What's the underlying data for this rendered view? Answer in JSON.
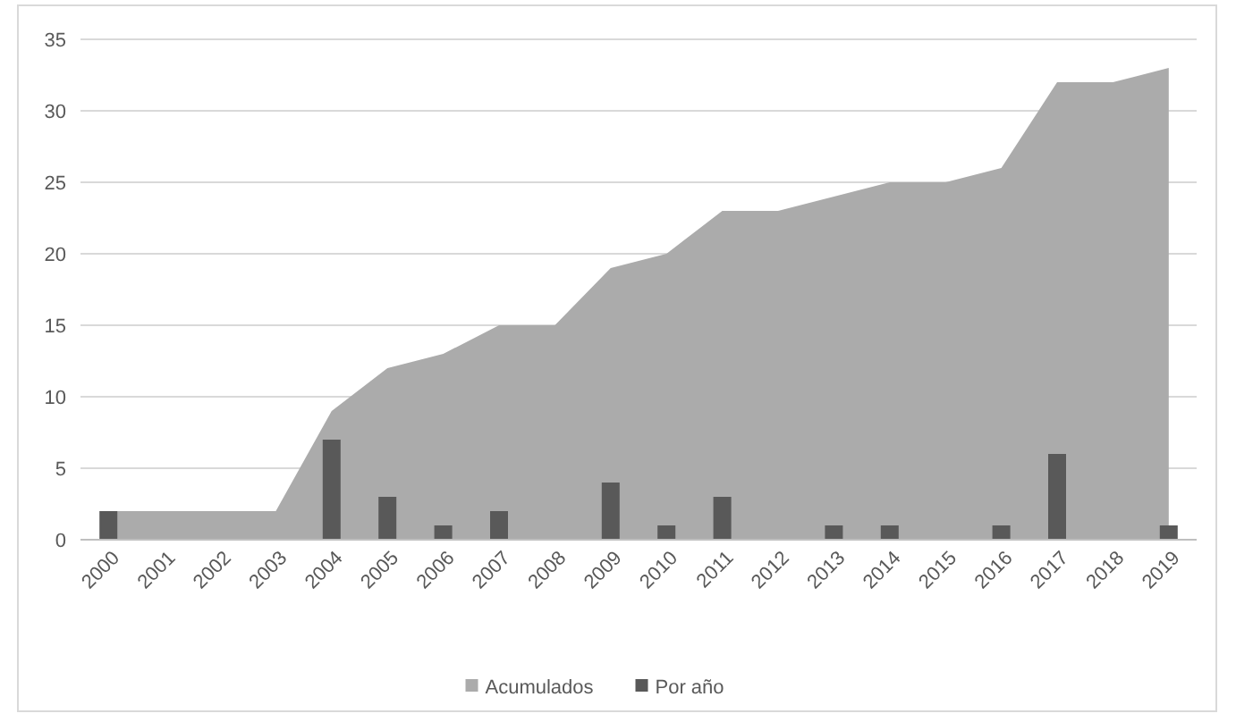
{
  "chart_data": {
    "type": "bar",
    "categories": [
      "2000",
      "2001",
      "2002",
      "2003",
      "2004",
      "2005",
      "2006",
      "2007",
      "2008",
      "2009",
      "2010",
      "2011",
      "2012",
      "2013",
      "2014",
      "2015",
      "2016",
      "2017",
      "2018",
      "2019"
    ],
    "series": [
      {
        "name": "Acumulados",
        "type": "area",
        "color": "#ababab",
        "values": [
          2,
          2,
          2,
          2,
          9,
          12,
          13,
          15,
          15,
          19,
          20,
          23,
          23,
          24,
          25,
          25,
          26,
          32,
          32,
          33
        ]
      },
      {
        "name": "Por año",
        "color": "#595959",
        "values": [
          2,
          0,
          0,
          0,
          7,
          3,
          1,
          2,
          0,
          4,
          1,
          3,
          0,
          1,
          1,
          0,
          1,
          6,
          0,
          1
        ]
      }
    ],
    "ylim": [
      0,
      35
    ],
    "yticks": [
      0,
      5,
      10,
      15,
      20,
      25,
      30,
      35
    ],
    "grid": "y",
    "legend": "bottom"
  }
}
